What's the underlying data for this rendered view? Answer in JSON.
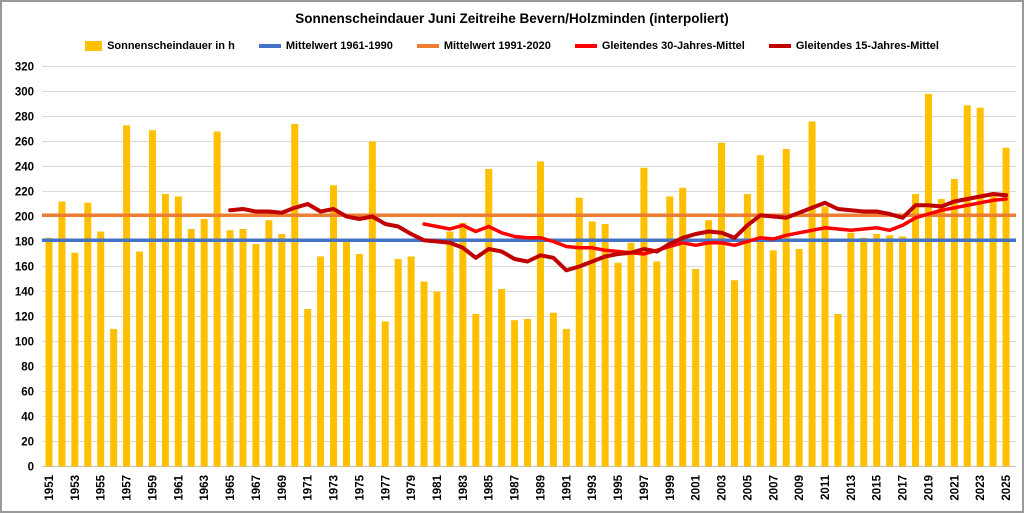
{
  "title": "Sonnenscheindauer Juni Zeitreihe Bevern/Holzminden (interpoliert)",
  "legend": [
    {
      "label": "Sonnenscheindauer in h",
      "color": "#FFC000",
      "marker": "square"
    },
    {
      "label": "Mittelwert 1961-1990",
      "color": "#4472C4",
      "marker": "line"
    },
    {
      "label": "Mittelwert 1991-2020",
      "color": "#ED7D31",
      "marker": "line"
    },
    {
      "label": "Gleitendes 30-Jahres-Mittel",
      "color": "#FF0000",
      "marker": "line"
    },
    {
      "label": "Gleitendes 15-Jahres-Mittel",
      "color": "#C00000",
      "marker": "line"
    }
  ],
  "chart_data": {
    "type": "bar",
    "title": "Sonnenscheindauer Juni Zeitreihe Bevern/Holzminden (interpoliert)",
    "xlabel": "",
    "ylabel": "",
    "ylim": [
      0,
      320
    ],
    "ytick_step": 20,
    "grid": true,
    "legend_position": "top",
    "x_tick_labels": [
      "1951",
      "1953",
      "1955",
      "1957",
      "1959",
      "1961",
      "1963",
      "1965",
      "1967",
      "1969",
      "1971",
      "1973",
      "1975",
      "1977",
      "1979",
      "1981",
      "1983",
      "1985",
      "1987",
      "1989",
      "1991",
      "1993",
      "1995",
      "1997",
      "1999",
      "2001",
      "2003",
      "2005",
      "2007",
      "2009",
      "2011",
      "2013",
      "2015",
      "2017",
      "2019",
      "2021",
      "2023",
      "2025"
    ],
    "years_start": 1951,
    "years_end": 2025,
    "series": [
      {
        "name": "Sonnenscheindauer in h",
        "kind": "bar",
        "color": "#FFC000",
        "start_year": 1951,
        "values": [
          183,
          212,
          171,
          211,
          188,
          110,
          273,
          172,
          269,
          218,
          216,
          190,
          198,
          268,
          189,
          190,
          178,
          197,
          186,
          274,
          126,
          168,
          225,
          181,
          170,
          260,
          116,
          166,
          168,
          148,
          140,
          188,
          195,
          122,
          238,
          142,
          117,
          118,
          244,
          123,
          110,
          215,
          196,
          194,
          163,
          179,
          239,
          164,
          216,
          223,
          158,
          197,
          259,
          149,
          218,
          249,
          173,
          254,
          174,
          276,
          208,
          122,
          187,
          183,
          186,
          185,
          184,
          218,
          298,
          214,
          230,
          289,
          287,
          217,
          255
        ]
      },
      {
        "name": "Mittelwert 1961-1990",
        "kind": "hline",
        "color": "#4472C4",
        "value": 181
      },
      {
        "name": "Mittelwert 1991-2020",
        "kind": "hline",
        "color": "#ED7D31",
        "value": 201
      },
      {
        "name": "Gleitendes 30-Jahres-Mittel",
        "kind": "line",
        "color": "#FF0000",
        "start_year": 1980,
        "values": [
          194,
          192,
          190,
          193,
          188,
          192,
          187,
          184,
          183,
          183,
          180,
          176,
          175,
          175,
          173,
          172,
          171,
          170,
          173,
          176,
          179,
          177,
          179,
          179,
          177,
          180,
          183,
          182,
          185,
          187,
          189,
          191,
          190,
          189,
          190,
          191,
          189,
          193,
          199,
          202,
          205,
          207,
          209,
          211,
          213,
          214
        ]
      },
      {
        "name": "Gleitendes 15-Jahres-Mittel",
        "kind": "line",
        "color": "#C00000",
        "start_year": 1965,
        "values": [
          205,
          206,
          204,
          204,
          203,
          207,
          210,
          204,
          206,
          200,
          198,
          200,
          194,
          192,
          186,
          181,
          180,
          179,
          175,
          167,
          174,
          172,
          166,
          164,
          169,
          167,
          157,
          160,
          164,
          168,
          170,
          171,
          174,
          172,
          178,
          183,
          186,
          188,
          187,
          183,
          193,
          201,
          200,
          199,
          203,
          207,
          211,
          206,
          205,
          204,
          204,
          202,
          199,
          209,
          209,
          208,
          212,
          214,
          216,
          218,
          217
        ]
      }
    ]
  }
}
